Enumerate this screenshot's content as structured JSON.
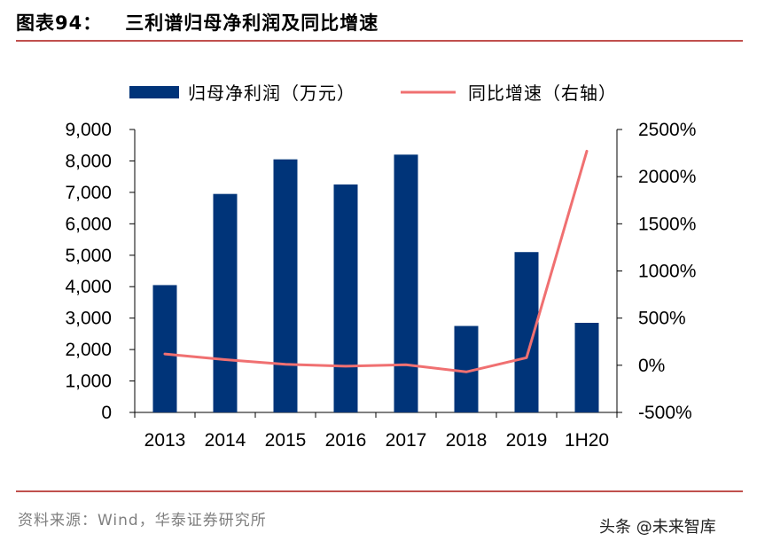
{
  "header": {
    "figure_label": "图表94：",
    "title": "三利谱归母净利润及同比增速"
  },
  "footer": {
    "source": "资料来源：Wind，华泰证券研究所",
    "watermark": "头条 @未来智库"
  },
  "colors": {
    "bar": "#003479",
    "line": "#f07071",
    "rule": "#c0504d"
  },
  "chart_data": {
    "type": "bar",
    "categories": [
      "2013",
      "2014",
      "2015",
      "2016",
      "2017",
      "2018",
      "2019",
      "1H20"
    ],
    "series": [
      {
        "name": "归母净利润（万元）",
        "type": "bar",
        "axis": "left",
        "values": [
          4050,
          6950,
          8050,
          7250,
          8200,
          2750,
          5100,
          2850
        ]
      },
      {
        "name": "同比增速（右轴）",
        "type": "line",
        "axis": "right",
        "values": [
          120,
          60,
          10,
          -10,
          5,
          -70,
          80,
          2270
        ]
      }
    ],
    "y_left": {
      "min": 0,
      "max": 9000,
      "step": 1000,
      "ticks": [
        "0",
        "1,000",
        "2,000",
        "3,000",
        "4,000",
        "5,000",
        "6,000",
        "7,000",
        "8,000",
        "9,000"
      ]
    },
    "y_right": {
      "min": -500,
      "max": 2500,
      "step": 500,
      "ticks": [
        "-500%",
        "0%",
        "500%",
        "1000%",
        "1500%",
        "2000%",
        "2500%"
      ]
    },
    "legend_position": "top",
    "grid": false
  }
}
